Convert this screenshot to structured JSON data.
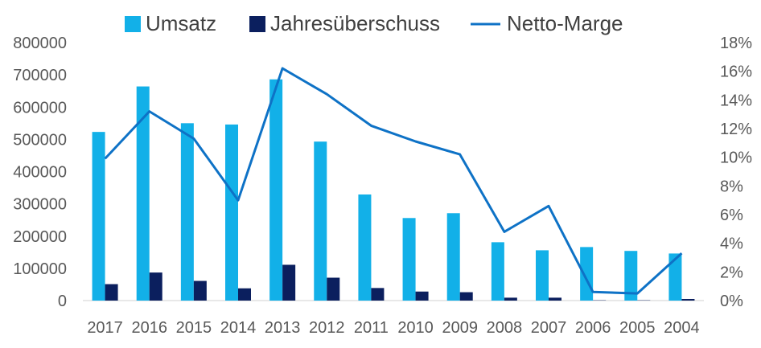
{
  "chart_data": {
    "type": "bar",
    "categories": [
      "2017",
      "2016",
      "2015",
      "2014",
      "2013",
      "2012",
      "2011",
      "2010",
      "2009",
      "2008",
      "2007",
      "2006",
      "2005",
      "2004"
    ],
    "series": [
      {
        "name": "Umsatz",
        "type": "bar",
        "axis": "left",
        "color": "#12B0E8",
        "values": [
          523000,
          664000,
          550000,
          546000,
          686000,
          493000,
          329000,
          256000,
          271000,
          181000,
          156000,
          166000,
          154000,
          146000
        ]
      },
      {
        "name": "Jahresüberschuss",
        "type": "bar",
        "axis": "left",
        "color": "#0B1F5E",
        "values": [
          51000,
          87000,
          61000,
          38000,
          111000,
          71000,
          39000,
          28000,
          26000,
          9000,
          9000,
          1000,
          1000,
          5000
        ]
      },
      {
        "name": "Netto-Marge",
        "type": "line",
        "axis": "right",
        "color": "#0E72C6",
        "values": [
          9.9,
          13.2,
          11.3,
          7.0,
          16.2,
          14.4,
          12.2,
          11.1,
          10.2,
          4.8,
          6.6,
          0.6,
          0.5,
          3.3
        ]
      }
    ],
    "y_left": {
      "ylim": [
        0,
        800000
      ],
      "ticks": [
        "0",
        "100000",
        "200000",
        "300000",
        "400000",
        "500000",
        "600000",
        "700000",
        "800000"
      ]
    },
    "y_right": {
      "ylim": [
        0,
        18
      ],
      "ticks": [
        "0%",
        "2%",
        "4%",
        "6%",
        "8%",
        "10%",
        "12%",
        "14%",
        "16%",
        "18%"
      ]
    },
    "legend_position": "top",
    "grid": false
  }
}
